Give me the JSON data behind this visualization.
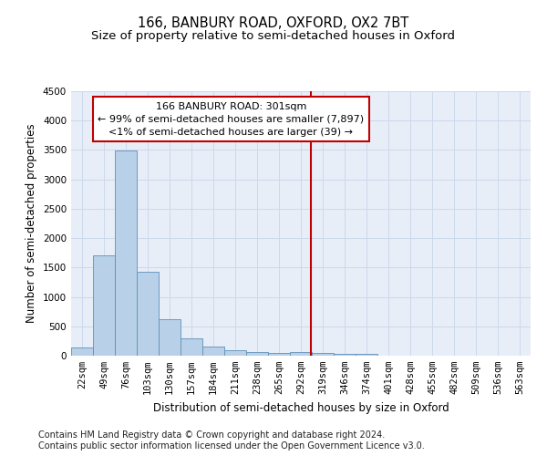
{
  "title": "166, BANBURY ROAD, OXFORD, OX2 7BT",
  "subtitle": "Size of property relative to semi-detached houses in Oxford",
  "xlabel": "Distribution of semi-detached houses by size in Oxford",
  "ylabel": "Number of semi-detached properties",
  "footnote1": "Contains HM Land Registry data © Crown copyright and database right 2024.",
  "footnote2": "Contains public sector information licensed under the Open Government Licence v3.0.",
  "bar_labels": [
    "22sqm",
    "49sqm",
    "76sqm",
    "103sqm",
    "130sqm",
    "157sqm",
    "184sqm",
    "211sqm",
    "238sqm",
    "265sqm",
    "292sqm",
    "319sqm",
    "346sqm",
    "374sqm",
    "401sqm",
    "428sqm",
    "455sqm",
    "482sqm",
    "509sqm",
    "536sqm",
    "563sqm"
  ],
  "bar_heights": [
    140,
    1700,
    3490,
    1430,
    620,
    290,
    155,
    100,
    65,
    50,
    55,
    40,
    35,
    30,
    0,
    0,
    0,
    0,
    0,
    0,
    0
  ],
  "bar_color": "#b8d0e8",
  "bar_edge_color": "#6090b8",
  "ylim": [
    0,
    4500
  ],
  "yticks": [
    0,
    500,
    1000,
    1500,
    2000,
    2500,
    3000,
    3500,
    4000,
    4500
  ],
  "vline_x_index": 10.45,
  "annotation_box_color": "#c00000",
  "grid_color": "#ccd8ec",
  "bg_color": "#e8eef8",
  "title_fontsize": 10.5,
  "subtitle_fontsize": 9.5,
  "axis_label_fontsize": 8.5,
  "tick_fontsize": 7.5,
  "annotation_fontsize": 8,
  "footnote_fontsize": 7
}
